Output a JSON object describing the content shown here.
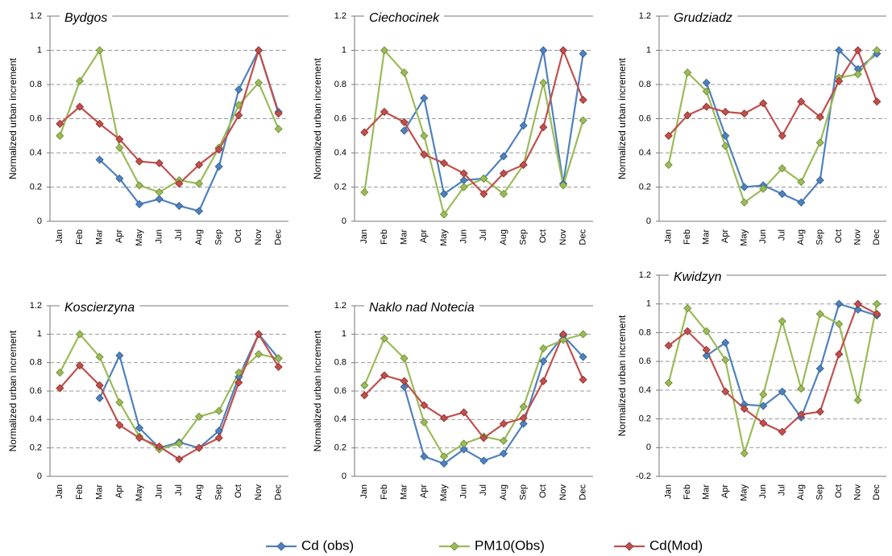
{
  "chart_data": [
    {
      "type": "line",
      "title": "Bydgos",
      "ylabel": "Normalized urban increment",
      "categories": [
        "Jan",
        "Feb",
        "Mar",
        "Apr",
        "May",
        "Jun",
        "Jul",
        "Aug",
        "Sep",
        "Oct",
        "Nov",
        "Dec"
      ],
      "series": [
        {
          "values": [
            null,
            null,
            0.36,
            0.25,
            0.1,
            0.13,
            0.09,
            0.06,
            0.32,
            0.77,
            1.0,
            0.64
          ]
        },
        {
          "values": [
            0.5,
            0.82,
            1.0,
            0.43,
            0.21,
            0.17,
            0.24,
            0.22,
            0.43,
            0.68,
            0.81,
            0.54
          ]
        },
        {
          "values": [
            0.57,
            0.67,
            0.57,
            0.48,
            0.35,
            0.34,
            0.22,
            0.33,
            0.42,
            0.62,
            1.0,
            0.63
          ]
        }
      ],
      "ylim": [
        0,
        1.2
      ],
      "yticks": [
        0,
        0.2,
        0.4,
        0.6,
        0.8,
        1,
        1.2
      ],
      "grid": true
    },
    {
      "type": "line",
      "title": "Ciechocinek",
      "ylabel": "Normalized urban increment",
      "categories": [
        "Jan",
        "Feb",
        "Mar",
        "Apr",
        "May",
        "Jun",
        "Jul",
        "Aug",
        "Sep",
        "Oct",
        "Nov",
        "Dec"
      ],
      "series": [
        {
          "values": [
            null,
            null,
            0.53,
            0.72,
            0.16,
            0.24,
            0.25,
            0.38,
            0.56,
            1.0,
            0.22,
            0.98
          ]
        },
        {
          "values": [
            0.17,
            1.0,
            0.87,
            0.5,
            0.04,
            0.2,
            0.25,
            0.16,
            0.33,
            0.81,
            0.21,
            0.59
          ]
        },
        {
          "values": [
            0.52,
            0.64,
            0.58,
            0.39,
            0.34,
            0.28,
            0.16,
            0.28,
            0.33,
            0.55,
            1.0,
            0.71
          ]
        }
      ],
      "ylim": [
        0,
        1.2
      ],
      "yticks": [
        0,
        0.2,
        0.4,
        0.6,
        0.8,
        1,
        1.2
      ],
      "grid": true
    },
    {
      "type": "line",
      "title": "Grudziadz",
      "ylabel": "Normalized urban increment",
      "categories": [
        "Jan",
        "Feb",
        "Mar",
        "Apr",
        "May",
        "Jun",
        "Jul",
        "Aug",
        "Sep",
        "Oct",
        "Nov",
        "Dec"
      ],
      "series": [
        {
          "values": [
            null,
            null,
            0.81,
            0.5,
            0.2,
            0.21,
            0.16,
            0.11,
            0.24,
            1.0,
            0.89,
            0.98
          ]
        },
        {
          "values": [
            0.33,
            0.87,
            0.76,
            0.44,
            0.11,
            0.19,
            0.31,
            0.23,
            0.46,
            0.84,
            0.86,
            1.0
          ]
        },
        {
          "values": [
            0.5,
            0.62,
            0.67,
            0.64,
            0.63,
            0.69,
            0.5,
            0.7,
            0.61,
            0.82,
            1.0,
            0.7
          ]
        }
      ],
      "ylim": [
        0,
        1.2
      ],
      "yticks": [
        0,
        0.2,
        0.4,
        0.6,
        0.8,
        1,
        1.2
      ],
      "grid": true
    },
    {
      "type": "line",
      "title": "Koscierzyna",
      "ylabel": "Normalized urban increment",
      "categories": [
        "Jan",
        "Feb",
        "Mar",
        "Apr",
        "May",
        "Jun",
        "Jul",
        "Aug",
        "Sep",
        "Oct",
        "Nov",
        "Dec"
      ],
      "series": [
        {
          "values": [
            null,
            null,
            0.55,
            0.85,
            0.34,
            0.2,
            0.24,
            0.2,
            0.32,
            0.7,
            1.0,
            0.83
          ]
        },
        {
          "values": [
            0.73,
            1.0,
            0.84,
            0.52,
            0.28,
            0.19,
            0.23,
            0.42,
            0.46,
            0.73,
            0.86,
            0.83
          ]
        },
        {
          "values": [
            0.62,
            0.78,
            0.64,
            0.36,
            0.27,
            0.21,
            0.12,
            0.2,
            0.27,
            0.66,
            1.0,
            0.77
          ]
        }
      ],
      "ylim": [
        0,
        1.2
      ],
      "yticks": [
        0,
        0.2,
        0.4,
        0.6,
        0.8,
        1,
        1.2
      ],
      "grid": true
    },
    {
      "type": "line",
      "title": "Naklo nad Notecia",
      "ylabel": "Normalized urban increment",
      "categories": [
        "Jan",
        "Feb",
        "Mar",
        "Apr",
        "May",
        "Jun",
        "Jul",
        "Aug",
        "Sep",
        "Oct",
        "Nov",
        "Dec"
      ],
      "series": [
        {
          "values": [
            null,
            null,
            0.63,
            0.14,
            0.09,
            0.19,
            0.11,
            0.16,
            0.37,
            0.81,
            0.99,
            0.84
          ]
        },
        {
          "values": [
            0.64,
            0.97,
            0.83,
            0.38,
            0.14,
            0.23,
            0.28,
            0.25,
            0.49,
            0.9,
            0.96,
            1.0
          ]
        },
        {
          "values": [
            0.57,
            0.71,
            0.67,
            0.5,
            0.41,
            0.45,
            0.27,
            0.37,
            0.41,
            0.67,
            1.0,
            0.68
          ]
        }
      ],
      "ylim": [
        0,
        1.2
      ],
      "yticks": [
        0,
        0.2,
        0.4,
        0.6,
        0.8,
        1,
        1.2
      ],
      "grid": true
    },
    {
      "type": "line",
      "title": "Kwidzyn",
      "ylabel": "Normalized urban increment",
      "categories": [
        "Jan",
        "Feb",
        "Mar",
        "Apr",
        "May",
        "Jun",
        "Jul",
        "Aug",
        "Sep",
        "Oct",
        "Nov",
        "Dec"
      ],
      "series": [
        {
          "values": [
            null,
            null,
            0.64,
            0.73,
            0.3,
            0.29,
            0.39,
            0.21,
            0.55,
            1.0,
            0.96,
            0.92
          ]
        },
        {
          "values": [
            0.45,
            0.97,
            0.81,
            0.61,
            -0.04,
            0.37,
            0.88,
            0.41,
            0.93,
            0.86,
            0.33,
            1.0
          ]
        },
        {
          "values": [
            0.71,
            0.81,
            0.68,
            0.39,
            0.27,
            0.17,
            0.11,
            0.23,
            0.25,
            0.65,
            1.0,
            0.93
          ]
        }
      ],
      "ylim": [
        -0.2,
        1.2
      ],
      "yticks": [
        -0.2,
        0,
        0.2,
        0.4,
        0.6,
        0.8,
        1,
        1.2
      ],
      "grid": true
    }
  ],
  "legend": [
    {
      "name": "Cd (obs)",
      "color": "#4f81bd"
    },
    {
      "name": "PM10(Obs)",
      "color": "#9bbb59"
    },
    {
      "name": "Cd(Mod)",
      "color": "#c0504d"
    }
  ]
}
